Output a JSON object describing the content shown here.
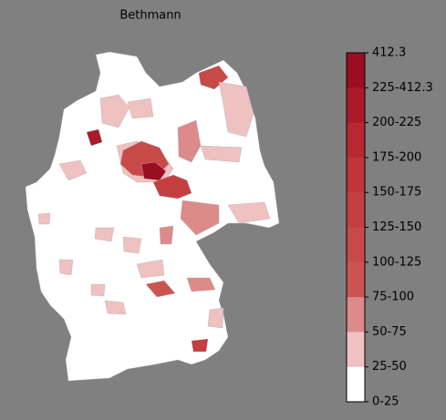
{
  "title": "Bethmann",
  "legend": {
    "labels": [
      "412.3",
      "225-412.3",
      "200-225",
      "175-200",
      "150-175",
      "125-150",
      "100-125",
      "75-100",
      "50-75",
      "25-50",
      "0-25"
    ],
    "colors": [
      "#9b0e22",
      "#ab1a2a",
      "#b82832",
      "#bf3539",
      "#c43f40",
      "#c84a48",
      "#cc5450",
      "#dc8a8a",
      "#efc1c1",
      "#ffffff"
    ]
  }
}
